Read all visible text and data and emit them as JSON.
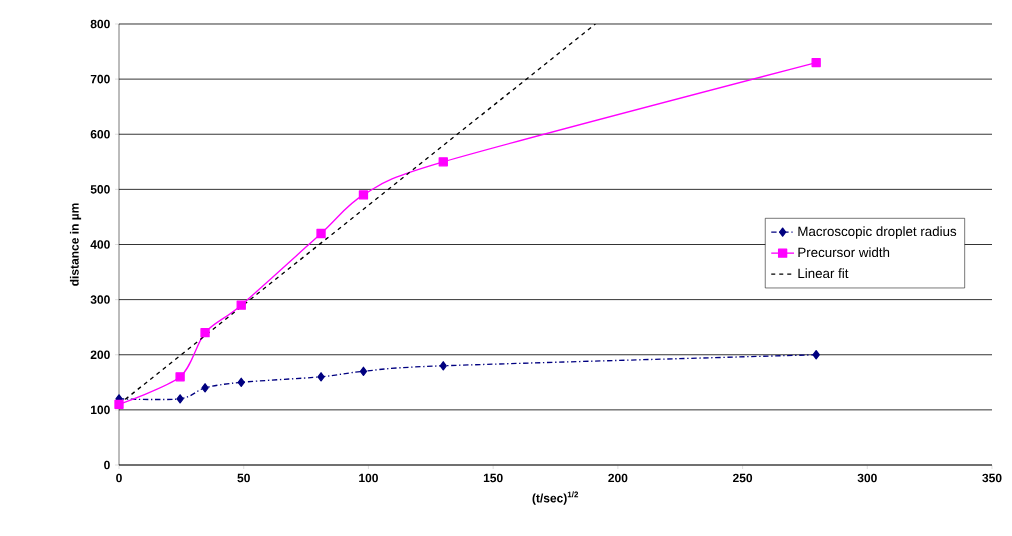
{
  "chart_data": {
    "type": "line",
    "xlabel": "(t/sec)$^{1/2}$",
    "ylabel": "distance in µm",
    "xlim": [
      0,
      350
    ],
    "xticks": [
      0,
      50,
      100,
      150,
      200,
      250,
      300,
      350
    ],
    "ylim": [
      0,
      800
    ],
    "yticks": [
      0,
      100,
      200,
      300,
      400,
      500,
      600,
      700,
      800
    ],
    "grid": "y",
    "legend": "right",
    "series": [
      {
        "name": "Macroscopic droplet radius",
        "color": "#000080",
        "marker": "diamond",
        "line_style": "dotted",
        "x": [
          0,
          24.5,
          34.5,
          49,
          81,
          98,
          130,
          279.5
        ],
        "values": [
          120,
          120,
          140,
          150,
          160,
          170,
          180,
          200
        ]
      },
      {
        "name": "Precursor width",
        "color": "#ff00ff",
        "marker": "square",
        "line_style": "solid",
        "x": [
          0,
          24.5,
          34.5,
          49,
          81,
          98,
          130,
          279.5
        ],
        "values": [
          110,
          160,
          240,
          290,
          420,
          490,
          550,
          730
        ]
      },
      {
        "name": "Linear fit",
        "color": "#000000",
        "marker": "none",
        "line_style": "dashed",
        "x": [
          0,
          191
        ],
        "values": [
          110,
          800
        ]
      }
    ]
  }
}
